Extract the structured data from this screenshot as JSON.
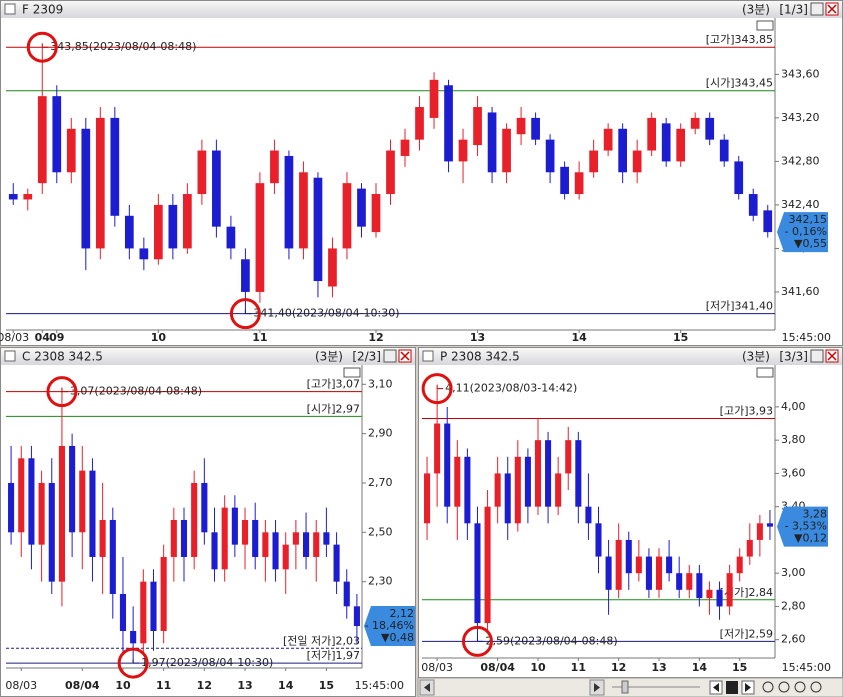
{
  "chart_data": [
    {
      "type": "candlestick",
      "title": "F 2309",
      "interval": "(3분)",
      "pane": "[1/3]",
      "up_color": "#e8202a",
      "down_color": "#1c1cd0",
      "ylim": [
        341.25,
        344.1
      ],
      "yticks": [
        {
          "value": 341.6,
          "label": "341,60"
        },
        {
          "value": 342.0,
          "label": "342,00"
        },
        {
          "value": 342.4,
          "label": "342,40"
        },
        {
          "value": 342.8,
          "label": "342,80"
        },
        {
          "value": 343.2,
          "label": "343,20"
        },
        {
          "value": 343.6,
          "label": "343,60"
        }
      ],
      "categories": [
        "08/03",
        null,
        "04",
        "09",
        null,
        null,
        null,
        null,
        null,
        null,
        "10",
        null,
        null,
        null,
        null,
        null,
        null,
        "11",
        null,
        null,
        null,
        null,
        null,
        null,
        null,
        "12",
        null,
        null,
        null,
        null,
        null,
        null,
        "13",
        null,
        null,
        null,
        null,
        null,
        null,
        "14",
        null,
        null,
        null,
        null,
        null,
        null,
        "15",
        null,
        null,
        null,
        null,
        null,
        null
      ],
      "time_label": "15:45:00",
      "ohlc": [
        [
          342.5,
          342.6,
          342.4,
          342.45
        ],
        [
          342.45,
          342.55,
          342.35,
          342.5
        ],
        [
          342.6,
          343.85,
          342.5,
          343.4
        ],
        [
          343.4,
          343.5,
          342.6,
          342.7
        ],
        [
          342.7,
          343.2,
          342.6,
          343.1
        ],
        [
          343.1,
          343.2,
          341.8,
          342.0
        ],
        [
          342.0,
          343.3,
          341.9,
          343.2
        ],
        [
          343.2,
          343.3,
          342.2,
          342.3
        ],
        [
          342.3,
          342.4,
          341.9,
          342.0
        ],
        [
          342.0,
          342.1,
          341.8,
          341.9
        ],
        [
          341.9,
          342.5,
          341.85,
          342.4
        ],
        [
          342.4,
          342.5,
          341.9,
          342.0
        ],
        [
          342.0,
          342.6,
          341.95,
          342.5
        ],
        [
          342.5,
          343.0,
          342.4,
          342.9
        ],
        [
          342.9,
          343.0,
          342.1,
          342.2
        ],
        [
          342.2,
          342.3,
          341.9,
          342.0
        ],
        [
          341.9,
          342.0,
          341.4,
          341.6
        ],
        [
          341.6,
          342.7,
          341.5,
          342.6
        ],
        [
          342.6,
          343.0,
          342.5,
          342.9
        ],
        [
          342.85,
          342.9,
          341.9,
          342.0
        ],
        [
          342.0,
          342.8,
          341.9,
          342.7
        ],
        [
          342.65,
          342.7,
          341.55,
          341.7
        ],
        [
          341.65,
          342.1,
          341.55,
          342.0
        ],
        [
          342.0,
          342.7,
          341.9,
          342.6
        ],
        [
          342.55,
          342.6,
          342.1,
          342.2
        ],
        [
          342.15,
          342.6,
          342.1,
          342.5
        ],
        [
          342.5,
          343.0,
          342.4,
          342.9
        ],
        [
          342.85,
          343.1,
          342.75,
          343.0
        ],
        [
          343.0,
          343.4,
          342.9,
          343.3
        ],
        [
          343.2,
          343.62,
          343.1,
          343.55
        ],
        [
          343.5,
          343.55,
          342.7,
          342.8
        ],
        [
          342.8,
          343.1,
          342.6,
          343.0
        ],
        [
          342.95,
          343.4,
          342.85,
          343.3
        ],
        [
          343.25,
          343.3,
          342.6,
          342.7
        ],
        [
          342.7,
          343.15,
          342.6,
          343.1
        ],
        [
          343.05,
          343.3,
          342.95,
          343.2
        ],
        [
          343.2,
          343.25,
          342.95,
          343.0
        ],
        [
          343.0,
          343.05,
          342.6,
          342.7
        ],
        [
          342.75,
          342.8,
          342.45,
          342.5
        ],
        [
          342.5,
          342.8,
          342.45,
          342.7
        ],
        [
          342.7,
          343.0,
          342.65,
          342.9
        ],
        [
          342.9,
          343.15,
          342.85,
          343.1
        ],
        [
          343.1,
          343.15,
          342.6,
          342.7
        ],
        [
          342.7,
          343.0,
          342.6,
          342.9
        ],
        [
          342.9,
          343.25,
          342.85,
          343.2
        ],
        [
          343.15,
          343.2,
          342.75,
          342.8
        ],
        [
          342.8,
          343.15,
          342.75,
          343.1
        ],
        [
          343.1,
          343.25,
          343.05,
          343.2
        ],
        [
          343.2,
          343.25,
          342.95,
          343.0
        ],
        [
          343.0,
          343.05,
          342.75,
          342.8
        ],
        [
          342.8,
          342.85,
          342.45,
          342.5
        ],
        [
          342.5,
          342.55,
          342.25,
          342.3
        ],
        [
          342.35,
          342.4,
          342.1,
          342.15
        ]
      ],
      "ref_lines": [
        {
          "label": "[고가]343,85",
          "value": 343.85,
          "color": "#c00000"
        },
        {
          "label": "[시가]343,45",
          "value": 343.45,
          "color": "#1a8a1a"
        },
        {
          "label": "[저가]341,40",
          "value": 341.4,
          "color": "#1a1a80"
        }
      ],
      "annotations": [
        {
          "text": "343,85(2023/08/04-08:48)",
          "value": 343.85,
          "color": "#c00000"
        },
        {
          "text": "341,40(2023/08/04-10:30)",
          "value": 341.4,
          "color": "#1a1a80"
        }
      ],
      "last": {
        "price": "342,15",
        "change": "- 0,16%",
        "diff": "▼0,55"
      }
    },
    {
      "type": "candlestick",
      "title": "C 2308 342.5",
      "interval": "(3분)",
      "pane": "[2/3]",
      "up_color": "#e8202a",
      "down_color": "#1c1cd0",
      "ylim": [
        1.95,
        3.17
      ],
      "yticks": [
        {
          "value": 2.3,
          "label": "2,30"
        },
        {
          "value": 2.5,
          "label": "2,50"
        },
        {
          "value": 2.7,
          "label": "2,70"
        },
        {
          "value": 2.9,
          "label": "2,90"
        },
        {
          "value": 3.1,
          "label": "3,10"
        }
      ],
      "categories": [
        null,
        "08/03",
        null,
        null,
        null,
        null,
        null,
        "08/04",
        null,
        null,
        null,
        "10",
        null,
        null,
        null,
        "11",
        null,
        null,
        null,
        "12",
        null,
        null,
        null,
        "13",
        null,
        null,
        null,
        "14",
        null,
        null,
        null,
        "15",
        null,
        null,
        null
      ],
      "time_label": "15:45:00",
      "ohlc": [
        [
          2.7,
          2.85,
          2.45,
          2.5
        ],
        [
          2.5,
          2.85,
          2.4,
          2.8
        ],
        [
          2.8,
          2.85,
          2.35,
          2.45
        ],
        [
          2.45,
          2.75,
          2.3,
          2.7
        ],
        [
          2.7,
          2.8,
          2.25,
          2.3
        ],
        [
          2.3,
          3.07,
          2.2,
          2.85
        ],
        [
          2.85,
          2.9,
          2.4,
          2.5
        ],
        [
          2.5,
          2.85,
          2.35,
          2.75
        ],
        [
          2.75,
          2.8,
          2.3,
          2.4
        ],
        [
          2.4,
          2.7,
          2.25,
          2.55
        ],
        [
          2.55,
          2.6,
          2.15,
          2.25
        ],
        [
          2.25,
          2.4,
          2.0,
          2.1
        ],
        [
          2.1,
          2.2,
          1.97,
          2.05
        ],
        [
          2.05,
          2.35,
          2.0,
          2.3
        ],
        [
          2.3,
          2.35,
          2.02,
          2.1
        ],
        [
          2.1,
          2.45,
          2.05,
          2.4
        ],
        [
          2.4,
          2.6,
          2.3,
          2.55
        ],
        [
          2.55,
          2.6,
          2.3,
          2.4
        ],
        [
          2.4,
          2.75,
          2.35,
          2.7
        ],
        [
          2.7,
          2.8,
          2.45,
          2.5
        ],
        [
          2.5,
          2.6,
          2.3,
          2.35
        ],
        [
          2.35,
          2.65,
          2.3,
          2.6
        ],
        [
          2.6,
          2.65,
          2.4,
          2.45
        ],
        [
          2.45,
          2.6,
          2.35,
          2.55
        ],
        [
          2.55,
          2.62,
          2.35,
          2.4
        ],
        [
          2.4,
          2.55,
          2.3,
          2.5
        ],
        [
          2.5,
          2.55,
          2.3,
          2.35
        ],
        [
          2.35,
          2.5,
          2.25,
          2.45
        ],
        [
          2.45,
          2.55,
          2.35,
          2.5
        ],
        [
          2.5,
          2.58,
          2.35,
          2.4
        ],
        [
          2.4,
          2.55,
          2.3,
          2.5
        ],
        [
          2.5,
          2.6,
          2.4,
          2.45
        ],
        [
          2.45,
          2.5,
          2.25,
          2.3
        ],
        [
          2.3,
          2.35,
          2.15,
          2.2
        ],
        [
          2.2,
          2.25,
          2.05,
          2.12
        ]
      ],
      "ref_lines": [
        {
          "label": "[고가]3,07",
          "value": 3.07,
          "color": "#c00000"
        },
        {
          "label": "[시가]2,97",
          "value": 2.97,
          "color": "#1a8a1a"
        },
        {
          "label": "[전일 저가]2,03",
          "value": 2.03,
          "color": "#1a1a80",
          "dashed": true
        },
        {
          "label": "[저가]1,97",
          "value": 1.97,
          "color": "#1a1a80"
        }
      ],
      "annotations": [
        {
          "text": "3,07(2023/08/04-08:48)",
          "value": 3.07,
          "color": "#c00000"
        },
        {
          "text": "1,97(2023/08/04-10:30)",
          "value": 1.97,
          "color": "#1a1a80"
        }
      ],
      "last": {
        "price": "2,12",
        "change": "- 18,46%",
        "diff": "▼0,48"
      }
    },
    {
      "type": "candlestick",
      "title": "P 2308 342.5",
      "interval": "(3분)",
      "pane": "[3/3]",
      "up_color": "#e8202a",
      "down_color": "#1c1cd0",
      "ylim": [
        2.49,
        4.24
      ],
      "yticks": [
        {
          "value": 2.6,
          "label": "2,60"
        },
        {
          "value": 2.8,
          "label": "2,80"
        },
        {
          "value": 3.0,
          "label": "3,00"
        },
        {
          "value": 3.4,
          "label": "3,40"
        },
        {
          "value": 3.6,
          "label": "3,60"
        },
        {
          "value": 3.8,
          "label": "3,80"
        },
        {
          "value": 4.0,
          "label": "4,00"
        }
      ],
      "categories": [
        null,
        "08/03",
        null,
        null,
        null,
        null,
        null,
        "08/04",
        null,
        null,
        null,
        "10",
        null,
        null,
        null,
        "11",
        null,
        null,
        null,
        "12",
        null,
        null,
        null,
        "13",
        null,
        null,
        null,
        "14",
        null,
        null,
        null,
        "15",
        null,
        null,
        null
      ],
      "time_label": "15:45:00",
      "ohlc": [
        [
          3.3,
          3.7,
          3.2,
          3.6
        ],
        [
          3.6,
          4.11,
          3.4,
          3.9
        ],
        [
          3.9,
          4.0,
          3.3,
          3.4
        ],
        [
          3.4,
          3.8,
          3.2,
          3.7
        ],
        [
          3.7,
          3.75,
          3.2,
          3.3
        ],
        [
          3.3,
          3.4,
          2.59,
          2.7
        ],
        [
          2.7,
          3.5,
          2.65,
          3.4
        ],
        [
          3.4,
          3.7,
          3.3,
          3.6
        ],
        [
          3.6,
          3.7,
          3.2,
          3.3
        ],
        [
          3.3,
          3.8,
          3.25,
          3.7
        ],
        [
          3.7,
          3.75,
          3.3,
          3.4
        ],
        [
          3.4,
          3.93,
          3.35,
          3.8
        ],
        [
          3.8,
          3.85,
          3.3,
          3.4
        ],
        [
          3.4,
          3.7,
          3.35,
          3.6
        ],
        [
          3.6,
          3.88,
          3.5,
          3.8
        ],
        [
          3.8,
          3.85,
          3.3,
          3.4
        ],
        [
          3.4,
          3.6,
          3.2,
          3.3
        ],
        [
          3.3,
          3.4,
          3.0,
          3.1
        ],
        [
          3.1,
          3.2,
          2.75,
          2.9
        ],
        [
          2.9,
          3.3,
          2.85,
          3.2
        ],
        [
          3.2,
          3.25,
          2.9,
          3.0
        ],
        [
          3.0,
          3.2,
          2.95,
          3.1
        ],
        [
          3.1,
          3.15,
          2.85,
          2.9
        ],
        [
          2.9,
          3.15,
          2.85,
          3.1
        ],
        [
          3.1,
          3.2,
          2.95,
          3.0
        ],
        [
          3.0,
          3.1,
          2.85,
          2.9
        ],
        [
          2.9,
          3.05,
          2.85,
          3.0
        ],
        [
          3.0,
          3.05,
          2.8,
          2.85
        ],
        [
          2.85,
          2.95,
          2.75,
          2.9
        ],
        [
          2.9,
          2.95,
          2.72,
          2.8
        ],
        [
          2.8,
          3.05,
          2.75,
          3.0
        ],
        [
          3.0,
          3.15,
          2.95,
          3.1
        ],
        [
          3.1,
          3.3,
          3.05,
          3.2
        ],
        [
          3.2,
          3.35,
          3.1,
          3.3
        ],
        [
          3.3,
          3.38,
          3.2,
          3.28
        ]
      ],
      "ref_lines": [
        {
          "label": "[고가]3,93",
          "value": 3.93,
          "color": "#c00000"
        },
        {
          "label": "[시가]2,84",
          "value": 2.84,
          "color": "#1a8a1a"
        },
        {
          "label": "[저가]2,59",
          "value": 2.59,
          "color": "#1a1a80"
        }
      ],
      "annotations": [
        {
          "text": "4,11(2023/08/03-14:42)",
          "value": 4.11,
          "color": "#c00000"
        },
        {
          "text": "2,59(2023/08/04-08:48)",
          "value": 2.59,
          "color": "#1a1a80"
        }
      ],
      "last": {
        "price": "3,28",
        "change": "- 3,53%",
        "diff": "▼0,12"
      }
    }
  ]
}
